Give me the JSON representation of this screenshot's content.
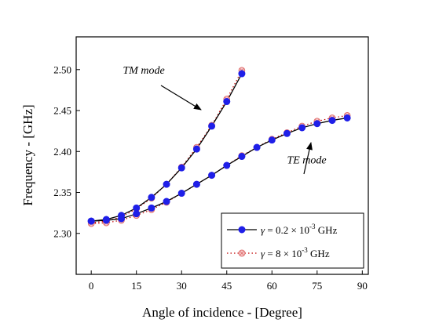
{
  "chart_data": {
    "type": "line",
    "title": "",
    "xlabel": "Angle of incidence - [Degree]",
    "ylabel": "Frequency - [GHz]",
    "xlim": [
      -5,
      92
    ],
    "ylim": [
      2.25,
      2.54
    ],
    "xticks": [
      0,
      15,
      30,
      45,
      60,
      75,
      90
    ],
    "yticks": [
      2.3,
      2.35,
      2.4,
      2.45,
      2.5
    ],
    "xtick_labels": [
      "0",
      "15",
      "30",
      "45",
      "60",
      "75",
      "90"
    ],
    "ytick_labels": [
      "2.30",
      "2.35",
      "2.40",
      "2.45",
      "2.50"
    ],
    "grid": false,
    "legend_position": "bottom-right",
    "legend": [
      {
        "text_prefix": "γ",
        "text_main": " = 0.2 × 10",
        "text_sup": "-3",
        "text_unit": " GHz"
      },
      {
        "text_prefix": "γ",
        "text_main": " = 8 × 10",
        "text_sup": "-3",
        "text_unit": " GHz"
      }
    ],
    "annotations": [
      {
        "text": "TM mode",
        "x": 10.5,
        "y": 2.5
      },
      {
        "text": "TE mode",
        "x": 65,
        "y": 2.39
      }
    ],
    "curves": [
      {
        "mode": "TM mode",
        "x": [
          0,
          5,
          10,
          15,
          20,
          25,
          30,
          35,
          40,
          45,
          50
        ],
        "series": [
          {
            "values": [
              2.315,
              2.317,
              2.322,
              2.331,
              2.344,
              2.36,
              2.38,
              2.403,
              2.431,
              2.461,
              2.495
            ]
          },
          {
            "values": [
              2.313,
              2.315,
              2.32,
              2.33,
              2.343,
              2.36,
              2.381,
              2.405,
              2.432,
              2.464,
              2.499
            ]
          }
        ]
      },
      {
        "mode": "TE mode",
        "x": [
          0,
          5,
          10,
          15,
          20,
          25,
          30,
          35,
          40,
          45,
          50,
          55,
          60,
          65,
          70,
          75,
          80,
          85
        ],
        "series": [
          {
            "values": [
              2.315,
              2.316,
              2.318,
              2.324,
              2.331,
              2.339,
              2.349,
              2.36,
              2.371,
              2.383,
              2.394,
              2.405,
              2.414,
              2.422,
              2.429,
              2.434,
              2.438,
              2.441
            ]
          },
          {
            "values": [
              2.312,
              2.313,
              2.316,
              2.322,
              2.329,
              2.338,
              2.349,
              2.36,
              2.371,
              2.383,
              2.395,
              2.405,
              2.415,
              2.423,
              2.431,
              2.437,
              2.441,
              2.444
            ]
          }
        ]
      }
    ],
    "colors": {
      "axis": "#000000",
      "series1_line": "#000000",
      "series1_marker": "#1f1fe8",
      "series2_line": "#c00000",
      "series2_marker": "#e07070"
    }
  }
}
